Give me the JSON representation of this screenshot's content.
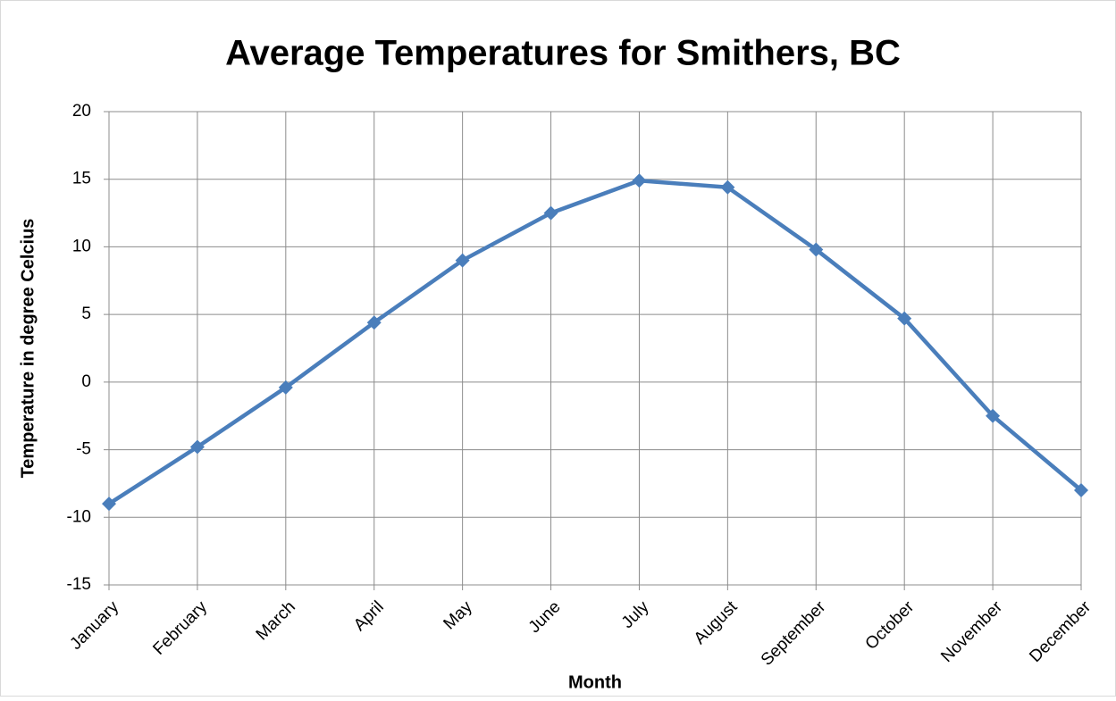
{
  "chart_data": {
    "type": "line",
    "title": "Average Temperatures for Smithers, BC",
    "xlabel": "Month",
    "ylabel": "Temperature in degree Celcius",
    "categories": [
      "January",
      "February",
      "March",
      "April",
      "May",
      "June",
      "July",
      "August",
      "September",
      "October",
      "November",
      "December"
    ],
    "values": [
      -9,
      -4.8,
      -0.4,
      4.4,
      9,
      12.5,
      14.9,
      14.4,
      9.8,
      4.7,
      -2.5,
      -8
    ],
    "color": "#4a7ebb",
    "marker": "diamond",
    "ylim": [
      -15,
      20
    ],
    "yticks": [
      -15,
      -10,
      -5,
      0,
      5,
      10,
      15,
      20
    ],
    "grid": true
  }
}
